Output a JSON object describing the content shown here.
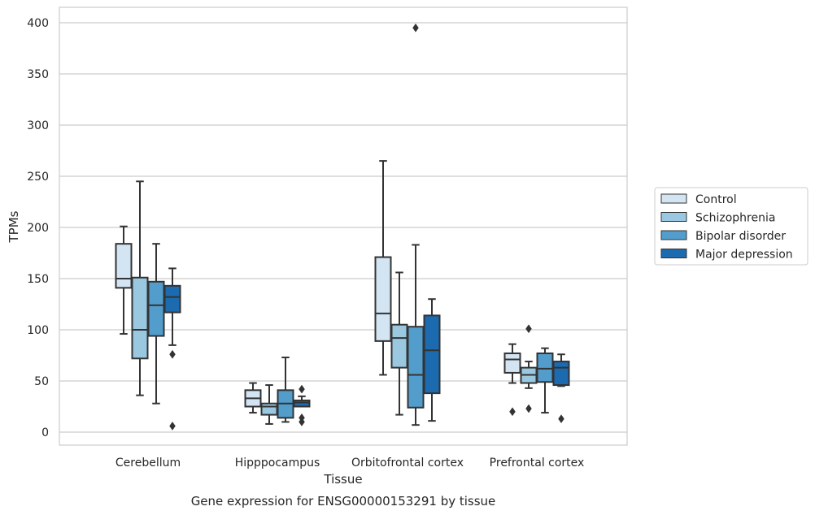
{
  "caption": "Gene expression for ENSG00000153291 by tissue",
  "chart_data": {
    "type": "boxplot",
    "xlabel": "Tissue",
    "ylabel": "TPMs",
    "ylim": [
      -12,
      415
    ],
    "yticks": [
      0,
      50,
      100,
      150,
      200,
      250,
      300,
      350,
      400
    ],
    "grid": "horizontal",
    "legend_placement": "right",
    "categories": [
      "Cerebellum",
      "Hipppocampus",
      "Orbitofrontal cortex",
      "Prefrontal cortex"
    ],
    "series": [
      {
        "name": "Control",
        "color": "#d3e4f3",
        "boxes": [
          {
            "whislo": 96,
            "q1": 141,
            "med": 150,
            "q3": 184,
            "whishi": 201,
            "fliers": []
          },
          {
            "whislo": 19,
            "q1": 25,
            "med": 33,
            "q3": 41,
            "whishi": 48,
            "fliers": []
          },
          {
            "whislo": 56,
            "q1": 89,
            "med": 116,
            "q3": 171,
            "whishi": 265,
            "fliers": []
          },
          {
            "whislo": 48,
            "q1": 58,
            "med": 71,
            "q3": 77,
            "whishi": 86,
            "fliers": [
              20
            ]
          }
        ]
      },
      {
        "name": "Schizophrenia",
        "color": "#9ac8e0",
        "boxes": [
          {
            "whislo": 36,
            "q1": 72,
            "med": 100,
            "q3": 151,
            "whishi": 245,
            "fliers": []
          },
          {
            "whislo": 8,
            "q1": 17,
            "med": 25,
            "q3": 28,
            "whishi": 46,
            "fliers": []
          },
          {
            "whislo": 17,
            "q1": 63,
            "med": 92,
            "q3": 105,
            "whishi": 156,
            "fliers": []
          },
          {
            "whislo": 43,
            "q1": 48,
            "med": 56,
            "q3": 63,
            "whishi": 69,
            "fliers": [
              23,
              101
            ]
          }
        ]
      },
      {
        "name": "Bipolar disorder",
        "color": "#529dcc",
        "boxes": [
          {
            "whislo": 28,
            "q1": 94,
            "med": 124,
            "q3": 147,
            "whishi": 184,
            "fliers": []
          },
          {
            "whislo": 10,
            "q1": 14,
            "med": 28,
            "q3": 41,
            "whishi": 73,
            "fliers": []
          },
          {
            "whislo": 7,
            "q1": 24,
            "med": 56,
            "q3": 103,
            "whishi": 183,
            "fliers": [
              395
            ]
          },
          {
            "whislo": 19,
            "q1": 49,
            "med": 62,
            "q3": 77,
            "whishi": 82,
            "fliers": []
          }
        ]
      },
      {
        "name": "Major depression",
        "color": "#1c6aaf",
        "boxes": [
          {
            "whislo": 85,
            "q1": 117,
            "med": 132,
            "q3": 143,
            "whishi": 160,
            "fliers": [
              76,
              6
            ]
          },
          {
            "whislo": 25,
            "q1": 25,
            "med": 29,
            "q3": 31,
            "whishi": 35,
            "fliers": [
              42,
              14,
              10
            ]
          },
          {
            "whislo": 11,
            "q1": 38,
            "med": 80,
            "q3": 114,
            "whishi": 130,
            "fliers": []
          },
          {
            "whislo": 45,
            "q1": 46,
            "med": 63,
            "q3": 69,
            "whishi": 76,
            "fliers": [
              13
            ]
          }
        ]
      }
    ]
  }
}
